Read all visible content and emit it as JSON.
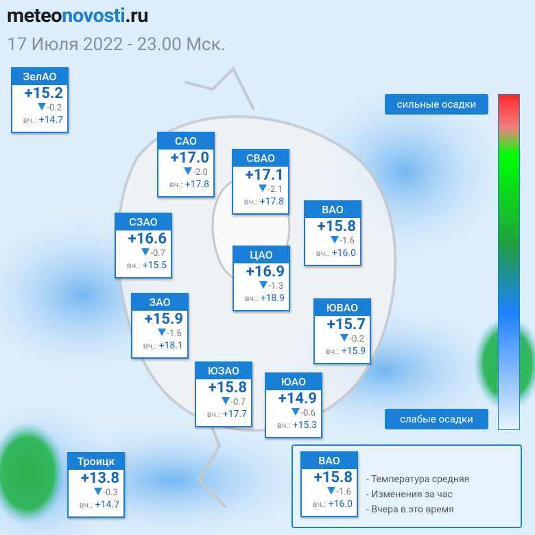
{
  "header": {
    "logo": {
      "part1": "meteo",
      "part2": "novosti",
      "part3": ".ru"
    },
    "title": "17 Июля 2022 - 23.00 Мск."
  },
  "districts": [
    {
      "name": "ЗелАО",
      "temp": "+15.2",
      "change": "-0.2",
      "yesterday_label": "вч.:",
      "yesterday": "+14.7"
    },
    {
      "name": "САО",
      "temp": "+17.0",
      "change": "-2.0",
      "yesterday_label": "вч.:",
      "yesterday": "+17.8"
    },
    {
      "name": "СВАО",
      "temp": "+17.1",
      "change": "-2.1",
      "yesterday_label": "вч.:",
      "yesterday": "+17.8"
    },
    {
      "name": "ВАО",
      "temp": "+15.8",
      "change": "-1.6",
      "yesterday_label": "вч.:",
      "yesterday": "+16.0"
    },
    {
      "name": "СЗАО",
      "temp": "+16.6",
      "change": "-0.7",
      "yesterday_label": "вч.:",
      "yesterday": "+15.5"
    },
    {
      "name": "ЦАО",
      "temp": "+16.9",
      "change": "-1.3",
      "yesterday_label": "вч.:",
      "yesterday": "+18.9"
    },
    {
      "name": "ЗАО",
      "temp": "+15.9",
      "change": "-1.6",
      "yesterday_label": "вч.:",
      "yesterday": "+18.1"
    },
    {
      "name": "ЮВАО",
      "temp": "+15.7",
      "change": "-0.2",
      "yesterday_label": "вч.:",
      "yesterday": "+15.9"
    },
    {
      "name": "ЮЗАО",
      "temp": "+15.8",
      "change": "-0.7",
      "yesterday_label": "вч.:",
      "yesterday": "+17.7"
    },
    {
      "name": "ЮАО",
      "temp": "+14.9",
      "change": "-0.6",
      "yesterday_label": "вч.:",
      "yesterday": "+15.3"
    },
    {
      "name": "Троицк",
      "temp": "+13.8",
      "change": "-0.3",
      "yesterday_label": "вч.:",
      "yesterday": "+14.7"
    }
  ],
  "scale": {
    "top_label": "сильные осадки",
    "bottom_label": "слабые осадки"
  },
  "legend": {
    "sample": {
      "name": "ВАО",
      "temp": "+15.8",
      "change": "-1.6",
      "yesterday_label": "вч.:",
      "yesterday": "+16.0"
    },
    "items": [
      "- Температура средняя",
      "- Изменения за час",
      "- Вчера в это время"
    ]
  }
}
